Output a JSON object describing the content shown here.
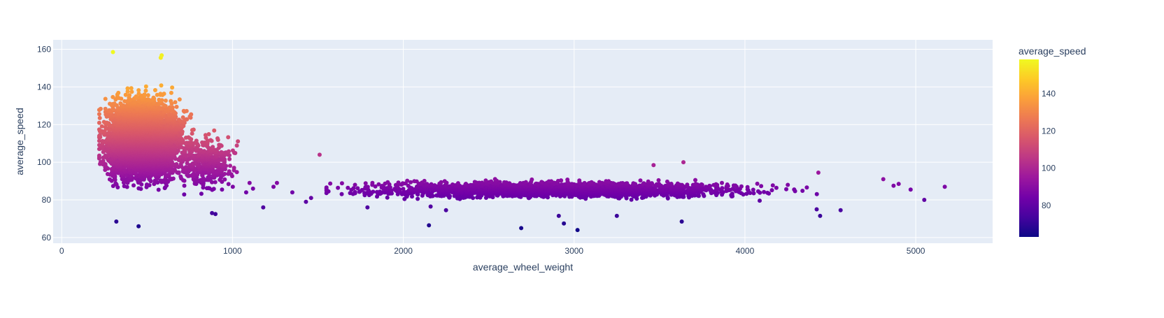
{
  "chart_data": {
    "type": "scatter",
    "title": "",
    "xlabel": "average_wheel_weight",
    "ylabel": "average_speed",
    "xlim": [
      -50,
      5450
    ],
    "ylim": [
      57,
      165
    ],
    "x_ticks": [
      0,
      1000,
      2000,
      3000,
      4000,
      5000
    ],
    "y_ticks": [
      60,
      80,
      100,
      120,
      140,
      160
    ],
    "grid": true,
    "background": "#e5ecf6",
    "colorbar": {
      "title": "average_speed",
      "min": 63,
      "max": 158.5,
      "ticks": [
        80,
        100,
        120,
        140
      ],
      "colorscale": [
        "#0d0887",
        "#46039f",
        "#7201a8",
        "#9c179e",
        "#bd3786",
        "#d8576b",
        "#ed7953",
        "#fb9f3a",
        "#fdca26",
        "#f0f921"
      ]
    },
    "marker_size": 6,
    "series": [
      {
        "name": "",
        "points": [
          [
            300,
            158.5
          ],
          [
            580,
            155.5
          ],
          [
            585,
            156.8
          ],
          [
            1510,
            104
          ],
          [
            3465,
            98.5
          ],
          [
            3640,
            100
          ],
          [
            4430,
            94.5
          ],
          [
            320,
            68.5
          ],
          [
            450,
            66
          ],
          [
            2150,
            66.5
          ],
          [
            2690,
            65
          ],
          [
            3020,
            64
          ],
          [
            2940,
            67.5
          ],
          [
            3630,
            68.5
          ],
          [
            4440,
            71.5
          ],
          [
            3250,
            71.5
          ],
          [
            2910,
            71.5
          ],
          [
            4420,
            75
          ],
          [
            4560,
            74.5
          ],
          [
            880,
            73
          ],
          [
            900,
            72.5
          ],
          [
            1180,
            76
          ],
          [
            1790,
            76
          ],
          [
            2250,
            74.5
          ],
          [
            2160,
            76.5
          ],
          [
            5050,
            80
          ],
          [
            5170,
            87
          ],
          [
            4970,
            85.5
          ],
          [
            4900,
            88.5
          ],
          [
            4810,
            91
          ],
          [
            4870,
            87.5
          ],
          [
            1430,
            79
          ],
          [
            1460,
            81
          ],
          [
            1350,
            84
          ],
          [
            1240,
            87
          ],
          [
            1260,
            89
          ],
          [
            1100,
            89
          ],
          [
            1120,
            86
          ],
          [
            1080,
            84
          ]
        ],
        "dense_regions": [
          {
            "x_range": [
              220,
              860
            ],
            "y_range": [
              74,
              148
            ],
            "count": 5200,
            "center": [
              480,
              112
            ]
          },
          {
            "x_range": [
              700,
              1150
            ],
            "y_range": [
              76,
              124
            ],
            "count": 420,
            "center": [
              850,
              100
            ]
          },
          {
            "x_range": [
              1550,
              4750
            ],
            "y_range": [
              78,
              93
            ],
            "count": 2300,
            "center": [
              2900,
              85.5
            ]
          }
        ]
      }
    ]
  }
}
